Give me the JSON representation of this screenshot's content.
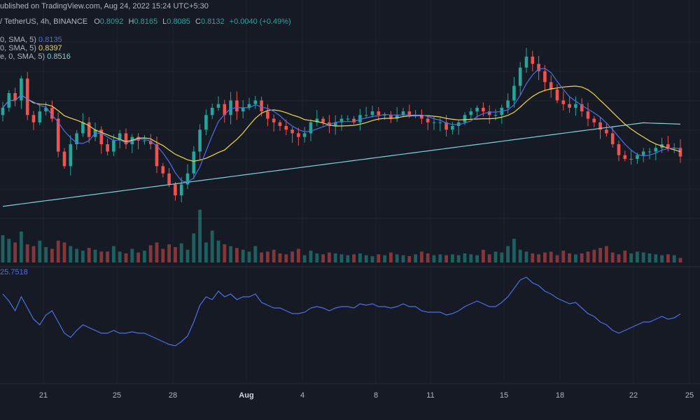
{
  "header": {
    "published": "ublished on TradingView.com, Aug 24, 2022 15:24 UTC+5:30",
    "symbol": "/ TetherUS, 4h, BINANCE",
    "ohlc_o_label": "O",
    "ohlc_o": "0.8092",
    "ohlc_h_label": "H",
    "ohlc_h": "0.8165",
    "ohlc_l_label": "L",
    "ohlc_l": "0.8085",
    "ohlc_c_label": "C",
    "ohlc_c": "0.8132",
    "change": "+0.0040 (+0.49%)"
  },
  "indicators": [
    {
      "label": "0, SMA, 5)",
      "value": "0.8135",
      "color": "#4c6fe8"
    },
    {
      "label": "0, SMA, 5)",
      "value": "0.8397",
      "color": "#f0d64a"
    },
    {
      "label": "e, 0, SMA, 5)",
      "value": "0.8516",
      "color": "#7fd3d6"
    }
  ],
  "oscillator": {
    "label": "25.7518"
  },
  "x_axis": {
    "labels": [
      "21",
      "25",
      "28",
      "Aug",
      "4",
      "8",
      "11",
      "15",
      "18",
      "22",
      "25"
    ]
  },
  "colors": {
    "background": "#161a25",
    "up": "#26a69a",
    "down": "#ef5350",
    "ma_fast": "#4c6fe8",
    "ma_mid": "#f0d64a",
    "ma_slow": "#7fd3d6",
    "oscillator": "#4c6fe8"
  },
  "chart_data": {
    "type": "candlestick",
    "timeframe": "4h",
    "exchange": "BINANCE",
    "close_series": [
      0.88,
      0.9,
      0.89,
      0.92,
      0.87,
      0.86,
      0.875,
      0.88,
      0.865,
      0.82,
      0.8,
      0.83,
      0.845,
      0.86,
      0.84,
      0.85,
      0.83,
      0.82,
      0.835,
      0.845,
      0.83,
      0.84,
      0.835,
      0.835,
      0.83,
      0.8,
      0.79,
      0.775,
      0.76,
      0.775,
      0.79,
      0.82,
      0.85,
      0.87,
      0.88,
      0.885,
      0.87,
      0.89,
      0.875,
      0.88,
      0.885,
      0.89,
      0.875,
      0.865,
      0.86,
      0.855,
      0.85,
      0.845,
      0.84,
      0.845,
      0.86,
      0.865,
      0.86,
      0.855,
      0.86,
      0.865,
      0.865,
      0.86,
      0.87,
      0.87,
      0.875,
      0.87,
      0.87,
      0.865,
      0.87,
      0.875,
      0.87,
      0.87,
      0.865,
      0.86,
      0.86,
      0.86,
      0.85,
      0.855,
      0.86,
      0.87,
      0.875,
      0.88,
      0.875,
      0.87,
      0.87,
      0.88,
      0.89,
      0.91,
      0.935,
      0.95,
      0.94,
      0.93,
      0.915,
      0.905,
      0.89,
      0.885,
      0.88,
      0.885,
      0.875,
      0.865,
      0.86,
      0.85,
      0.845,
      0.83,
      0.815,
      0.81,
      0.81,
      0.815,
      0.82,
      0.82,
      0.825,
      0.83,
      0.825,
      0.825,
      0.8132
    ],
    "volume_series": [
      30,
      26,
      22,
      34,
      20,
      18,
      24,
      17,
      15,
      24,
      22,
      18,
      15,
      13,
      16,
      14,
      12,
      12,
      18,
      12,
      10,
      15,
      11,
      13,
      19,
      22,
      15,
      20,
      17,
      21,
      14,
      32,
      58,
      22,
      35,
      24,
      20,
      18,
      16,
      14,
      12,
      18,
      11,
      12,
      14,
      10,
      9,
      12,
      15,
      8,
      13,
      10,
      9,
      11,
      10,
      9,
      8,
      9,
      10,
      8,
      7,
      9,
      8,
      11,
      9,
      8,
      7,
      9,
      12,
      10,
      8,
      9,
      8,
      9,
      8,
      10,
      9,
      8,
      14,
      9,
      12,
      11,
      18,
      26,
      14,
      12,
      10,
      9,
      11,
      12,
      8,
      13,
      10,
      9,
      10,
      12,
      14,
      16,
      18,
      11,
      9,
      13,
      10,
      12,
      11,
      10,
      9,
      8,
      9,
      8,
      5
    ],
    "oscillator_series": [
      40,
      35,
      28,
      38,
      30,
      22,
      18,
      25,
      28,
      20,
      12,
      9,
      14,
      18,
      16,
      14,
      12,
      12,
      14,
      12,
      12,
      13,
      12,
      12,
      10,
      8,
      6,
      4,
      3,
      6,
      10,
      20,
      32,
      38,
      36,
      42,
      38,
      40,
      36,
      38,
      38,
      40,
      34,
      32,
      30,
      30,
      28,
      26,
      26,
      27,
      30,
      31,
      30,
      28,
      30,
      31,
      31,
      30,
      33,
      32,
      33,
      31,
      31,
      30,
      31,
      33,
      31,
      31,
      28,
      27,
      27,
      27,
      25,
      26,
      28,
      31,
      33,
      35,
      33,
      31,
      31,
      34,
      38,
      44,
      50,
      52,
      48,
      46,
      42,
      40,
      37,
      35,
      33,
      34,
      30,
      26,
      24,
      20,
      18,
      14,
      12,
      14,
      16,
      18,
      20,
      20,
      22,
      24,
      22,
      23,
      25.7518
    ],
    "last_close": 0.8132,
    "ma_values": {
      "ma_fast": 0.8135,
      "ma_mid": 0.8397,
      "ma_slow": 0.8516
    }
  }
}
